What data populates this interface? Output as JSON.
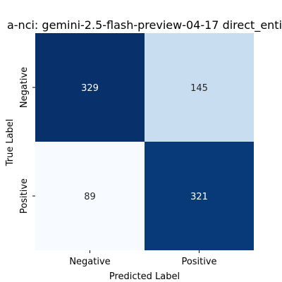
{
  "chart_data": {
    "type": "heatmap",
    "title": "a-nci: gemini-2.5-flash-preview-04-17 direct_enti",
    "xlabel": "Predicted Label",
    "ylabel": "True Label",
    "x_categories": [
      "Negative",
      "Positive"
    ],
    "y_categories": [
      "Negative",
      "Positive"
    ],
    "matrix": [
      [
        329,
        145
      ],
      [
        89,
        321
      ]
    ],
    "colormap": "Blues",
    "colorbar": false,
    "annotations": true,
    "colors": {
      "high": "#08306b",
      "low": "#f7fbff",
      "annotation_dark": "#ffffff",
      "annotation_light": "#262626"
    }
  }
}
